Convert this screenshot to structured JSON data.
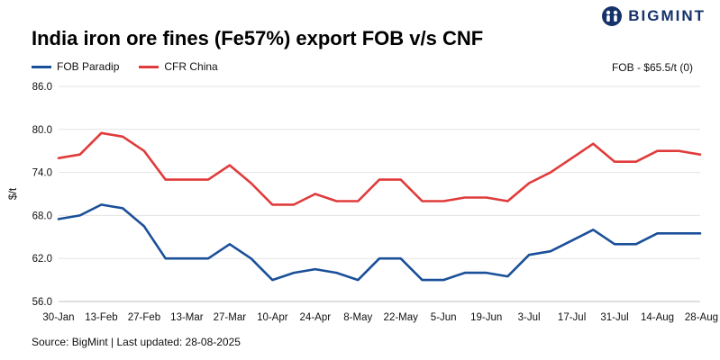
{
  "header": {
    "title": "India iron ore fines (Fe57%) export FOB v/s CNF",
    "brand": "BIGMINT"
  },
  "annotation": "FOB - $65.5/t (0)",
  "footer": {
    "source": "Source: BigMint | Last updated: 28-08-2025"
  },
  "colors": {
    "fob": "#1a4f99",
    "cfr": "#e03b3b",
    "brand": "#15326a"
  },
  "chart_data": {
    "type": "line",
    "title": "India iron ore fines (Fe57%) export FOB v/s CNF",
    "xlabel": "",
    "ylabel": "$/t",
    "ylim": [
      56,
      86
    ],
    "yticks": [
      56,
      62,
      68,
      74,
      80,
      86
    ],
    "ytick_labels": [
      "56.0",
      "62.0",
      "68.0",
      "74.0",
      "80.0",
      "86.0"
    ],
    "grid": "horizontal",
    "legend": "top-left",
    "x": [
      "30-Jan",
      "6-Feb",
      "13-Feb",
      "20-Feb",
      "27-Feb",
      "6-Mar",
      "13-Mar",
      "20-Mar",
      "27-Mar",
      "3-Apr",
      "10-Apr",
      "17-Apr",
      "24-Apr",
      "1-May",
      "8-May",
      "15-May",
      "22-May",
      "29-May",
      "5-Jun",
      "12-Jun",
      "19-Jun",
      "26-Jun",
      "3-Jul",
      "10-Jul",
      "17-Jul",
      "24-Jul",
      "31-Jul",
      "7-Aug",
      "14-Aug",
      "21-Aug",
      "28-Aug"
    ],
    "x_tick_labels": [
      "30-Jan",
      "13-Feb",
      "27-Feb",
      "13-Mar",
      "27-Mar",
      "10-Apr",
      "24-Apr",
      "8-May",
      "22-May",
      "5-Jun",
      "19-Jun",
      "3-Jul",
      "17-Jul",
      "31-Jul",
      "14-Aug",
      "28-Aug"
    ],
    "series": [
      {
        "name": "FOB Paradip",
        "color": "#1a4f99",
        "values": [
          67.5,
          68,
          69.5,
          69,
          66.5,
          62,
          62,
          62,
          64,
          62,
          59,
          60,
          60.5,
          60,
          59,
          62,
          62,
          59,
          59,
          60,
          60,
          59.5,
          62.5,
          63,
          64.5,
          66,
          64,
          64,
          65.5,
          65.5,
          65.5
        ]
      },
      {
        "name": "CFR China",
        "color": "#e03b3b",
        "values": [
          76,
          76.5,
          79.5,
          79,
          77,
          73,
          73,
          73,
          75,
          72.5,
          69.5,
          69.5,
          71,
          70,
          70,
          73,
          73,
          70,
          70,
          70.5,
          70.5,
          70,
          72.5,
          74,
          76,
          78,
          75.5,
          75.5,
          77,
          77,
          76.5
        ]
      }
    ]
  }
}
